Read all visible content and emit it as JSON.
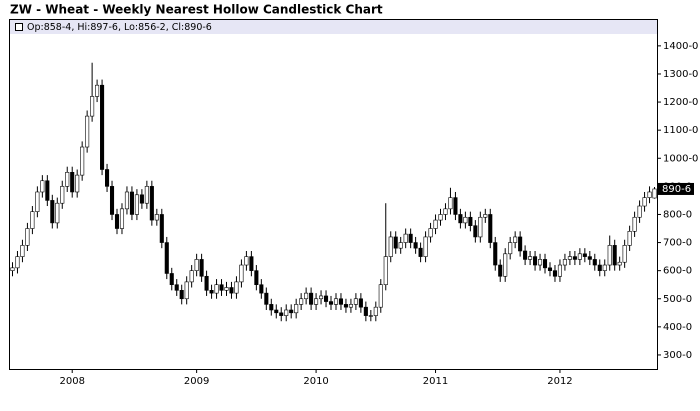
{
  "chart_data": {
    "type": "candlestick",
    "title": "ZW - Wheat - Weekly Nearest Hollow Candlestick Chart",
    "header": "Op:858-4, Hi:897-6, Lo:856-2, Cl:890-6",
    "last_price": {
      "value": 890.75,
      "label": "890-6"
    },
    "up_color": "#ffffff",
    "down_color": "#000000",
    "categories": [
      null,
      null,
      null,
      null,
      null,
      null,
      null,
      null,
      null,
      null,
      null,
      null,
      "2008",
      null,
      null,
      null,
      null,
      null,
      null,
      null,
      null,
      null,
      null,
      null,
      null,
      null,
      null,
      null,
      null,
      null,
      null,
      null,
      null,
      null,
      null,
      null,
      null,
      "2009",
      null,
      null,
      null,
      null,
      null,
      null,
      null,
      null,
      null,
      null,
      null,
      null,
      null,
      null,
      null,
      null,
      null,
      null,
      null,
      null,
      null,
      null,
      null,
      "2010",
      null,
      null,
      null,
      null,
      null,
      null,
      null,
      null,
      null,
      null,
      null,
      null,
      null,
      null,
      null,
      null,
      null,
      null,
      null,
      null,
      null,
      null,
      null,
      "2011",
      null,
      null,
      null,
      null,
      null,
      null,
      null,
      null,
      null,
      null,
      null,
      null,
      null,
      null,
      null,
      null,
      null,
      null,
      null,
      null,
      null,
      null,
      null,
      null,
      "2012",
      null,
      null,
      null,
      null,
      null,
      null,
      null,
      null,
      null,
      null,
      null,
      null,
      null,
      null,
      null,
      null,
      null,
      null,
      null
    ],
    "open": [
      600,
      610,
      650,
      690,
      750,
      810,
      880,
      920,
      850,
      770,
      840,
      900,
      950,
      880,
      940,
      1040,
      1150,
      1220,
      1260,
      960,
      900,
      800,
      750,
      820,
      880,
      800,
      870,
      840,
      900,
      780,
      800,
      700,
      590,
      550,
      530,
      500,
      560,
      600,
      640,
      580,
      530,
      520,
      550,
      530,
      540,
      520,
      560,
      620,
      650,
      600,
      550,
      520,
      480,
      460,
      450,
      440,
      460,
      450,
      480,
      500,
      520,
      480,
      500,
      510,
      490,
      480,
      500,
      480,
      470,
      480,
      500,
      470,
      440,
      440,
      470,
      550,
      650,
      720,
      680,
      700,
      730,
      700,
      680,
      650,
      720,
      750,
      780,
      800,
      820,
      860,
      800,
      770,
      790,
      760,
      720,
      790,
      800,
      700,
      620,
      580,
      660,
      700,
      720,
      670,
      640,
      650,
      620,
      640,
      610,
      600,
      580,
      620,
      640,
      650,
      640,
      660,
      650,
      640,
      620,
      600,
      620,
      690,
      620,
      630,
      690,
      740,
      790,
      830,
      860,
      858.5
    ],
    "high": [
      630,
      670,
      710,
      770,
      830,
      900,
      940,
      940,
      870,
      860,
      920,
      970,
      970,
      960,
      1060,
      1170,
      1340,
      1280,
      1280,
      980,
      920,
      820,
      840,
      900,
      900,
      890,
      890,
      920,
      920,
      820,
      820,
      720,
      610,
      570,
      550,
      580,
      620,
      660,
      660,
      600,
      550,
      570,
      570,
      560,
      560,
      580,
      640,
      670,
      670,
      620,
      570,
      540,
      500,
      480,
      470,
      480,
      480,
      500,
      520,
      540,
      540,
      520,
      530,
      530,
      510,
      520,
      520,
      500,
      500,
      520,
      520,
      490,
      460,
      490,
      570,
      840,
      740,
      740,
      720,
      750,
      750,
      720,
      700,
      740,
      770,
      800,
      820,
      840,
      895,
      880,
      820,
      810,
      810,
      780,
      810,
      820,
      820,
      720,
      640,
      680,
      720,
      740,
      740,
      690,
      670,
      670,
      660,
      660,
      630,
      620,
      640,
      660,
      670,
      670,
      680,
      680,
      670,
      660,
      640,
      640,
      725,
      710,
      650,
      710,
      760,
      810,
      850,
      880,
      900,
      897.75
    ],
    "low": [
      580,
      590,
      630,
      670,
      730,
      790,
      860,
      830,
      750,
      750,
      820,
      880,
      860,
      860,
      920,
      1020,
      1130,
      1200,
      940,
      880,
      780,
      730,
      730,
      800,
      780,
      780,
      820,
      820,
      760,
      760,
      680,
      570,
      530,
      510,
      480,
      480,
      540,
      580,
      560,
      510,
      500,
      500,
      510,
      510,
      500,
      500,
      540,
      600,
      580,
      530,
      500,
      460,
      440,
      430,
      420,
      420,
      430,
      430,
      460,
      480,
      460,
      460,
      480,
      470,
      460,
      460,
      460,
      450,
      450,
      460,
      450,
      420,
      420,
      420,
      450,
      530,
      630,
      660,
      660,
      680,
      680,
      660,
      630,
      630,
      700,
      730,
      760,
      780,
      800,
      780,
      750,
      750,
      740,
      700,
      700,
      770,
      680,
      600,
      560,
      560,
      640,
      680,
      650,
      620,
      620,
      600,
      600,
      590,
      580,
      560,
      560,
      600,
      620,
      620,
      620,
      630,
      620,
      600,
      580,
      580,
      600,
      600,
      600,
      610,
      670,
      720,
      770,
      810,
      840,
      856.25
    ],
    "close": [
      610,
      650,
      690,
      750,
      810,
      880,
      920,
      850,
      770,
      840,
      900,
      950,
      880,
      940,
      1040,
      1150,
      1220,
      1260,
      960,
      900,
      800,
      750,
      820,
      880,
      800,
      870,
      840,
      900,
      780,
      800,
      700,
      590,
      550,
      530,
      500,
      560,
      600,
      640,
      580,
      530,
      520,
      550,
      530,
      540,
      520,
      560,
      620,
      650,
      600,
      550,
      520,
      480,
      460,
      450,
      440,
      460,
      450,
      480,
      500,
      520,
      480,
      500,
      510,
      490,
      480,
      500,
      480,
      470,
      480,
      500,
      470,
      440,
      440,
      470,
      550,
      650,
      720,
      680,
      700,
      730,
      700,
      680,
      650,
      720,
      750,
      780,
      800,
      820,
      860,
      800,
      770,
      790,
      760,
      720,
      790,
      800,
      700,
      620,
      580,
      660,
      700,
      720,
      670,
      640,
      650,
      620,
      640,
      610,
      600,
      580,
      620,
      640,
      650,
      640,
      660,
      650,
      640,
      620,
      600,
      620,
      690,
      620,
      630,
      690,
      740,
      790,
      830,
      860,
      880,
      890.75
    ],
    "ylim": [
      250,
      1428
    ],
    "yticks": [
      {
        "value": 300,
        "label": "300-0"
      },
      {
        "value": 400,
        "label": "400-0"
      },
      {
        "value": 500,
        "label": "500-0"
      },
      {
        "value": 600,
        "label": "600-0"
      },
      {
        "value": 700,
        "label": "700-0"
      },
      {
        "value": 800,
        "label": "800-0"
      },
      {
        "value": 900,
        "label": "900-0"
      },
      {
        "value": 1000,
        "label": "1000-0"
      },
      {
        "value": 1100,
        "label": "1100-0"
      },
      {
        "value": 1200,
        "label": "1200-0"
      },
      {
        "value": 1300,
        "label": "1300-0"
      },
      {
        "value": 1400,
        "label": "1400-0"
      }
    ]
  }
}
